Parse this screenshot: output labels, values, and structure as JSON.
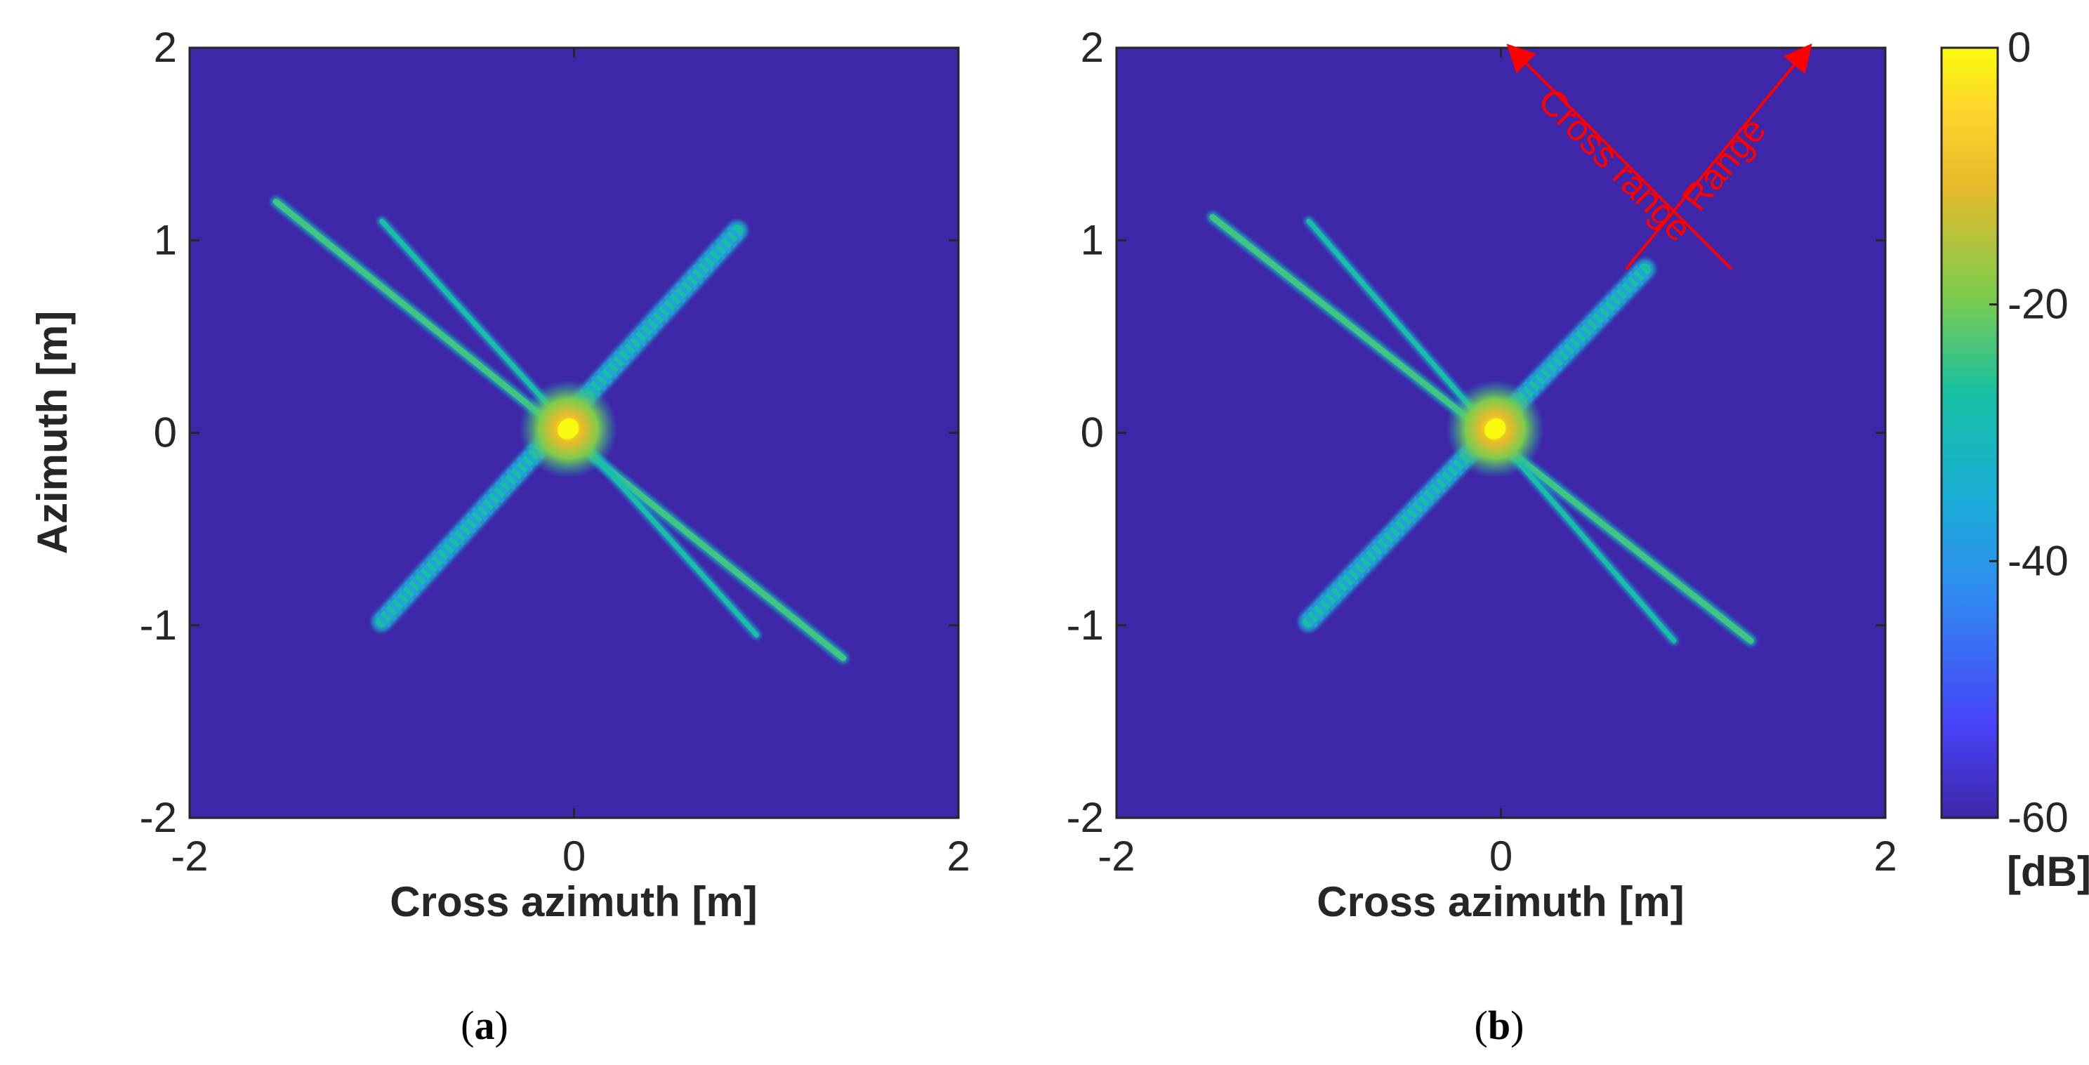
{
  "chart_data": [
    {
      "type": "heatmap",
      "panel_label": "a",
      "xlabel": "Cross azimuth [m]",
      "ylabel": "Azimuth [m]",
      "xlim": [
        -2,
        2
      ],
      "ylim": [
        -2,
        2
      ],
      "xticks": [
        "-2",
        "0",
        "2"
      ],
      "yticks": [
        "2",
        "1",
        "0",
        "-1",
        "-2"
      ],
      "background_db": -60,
      "peak": {
        "x": -0.03,
        "y": 0.02,
        "value_db": 0
      },
      "streaks": [
        {
          "name": "",
          "from": [
            -1.55,
            1.2
          ],
          "to": [
            1.4,
            -1.17
          ],
          "width": 0.045,
          "level": 0.55,
          "stripes": false
        },
        {
          "name": "",
          "from": [
            -1.0,
            1.1
          ],
          "to": [
            0.95,
            -1.05
          ],
          "width": 0.035,
          "level": 0.5,
          "stripes": false
        },
        {
          "name": "",
          "from": [
            -1.0,
            -0.98
          ],
          "to": [
            0.85,
            1.05
          ],
          "width": 0.085,
          "level": 0.5,
          "stripes": true
        }
      ]
    },
    {
      "type": "heatmap",
      "panel_label": "b",
      "xlabel": "Cross azimuth [m]",
      "ylabel": "",
      "xlim": [
        -2,
        2
      ],
      "ylim": [
        -2,
        2
      ],
      "xticks": [
        "-2",
        "0",
        "2"
      ],
      "yticks": [
        "2",
        "1",
        "0",
        "-1",
        "-2"
      ],
      "background_db": -60,
      "peak": {
        "x": -0.03,
        "y": 0.02,
        "value_db": 0
      },
      "streaks": [
        {
          "name": "",
          "from": [
            -1.5,
            1.12
          ],
          "to": [
            1.3,
            -1.08
          ],
          "width": 0.045,
          "level": 0.55,
          "stripes": false
        },
        {
          "name": "",
          "from": [
            -1.0,
            1.1
          ],
          "to": [
            0.9,
            -1.08
          ],
          "width": 0.035,
          "level": 0.5,
          "stripes": false
        },
        {
          "name": "",
          "from": [
            -1.0,
            -0.98
          ],
          "to": [
            0.75,
            0.85
          ],
          "width": 0.085,
          "level": 0.5,
          "stripes": true
        }
      ],
      "annotations": [
        {
          "text": "Cross range",
          "from": [
            1.2,
            0.85
          ],
          "to": [
            0.05,
            2.0
          ]
        },
        {
          "text": "Range",
          "from": [
            0.65,
            0.85
          ],
          "to": [
            1.6,
            2.0
          ]
        }
      ]
    }
  ],
  "colorbar": {
    "label": "[dB]",
    "range": [
      -60,
      0
    ],
    "ticks": [
      "0",
      "-20",
      "-40",
      "-60"
    ],
    "colormap": [
      "#3e26a8",
      "#4743f8",
      "#2f8ef0",
      "#1aaed5",
      "#17c0a3",
      "#7fcc4d",
      "#e7ba2b",
      "#fed52c",
      "#f9fb0e"
    ]
  },
  "captions": {
    "a": "(a)",
    "b": "(b)"
  },
  "colors": {
    "background": "#3e26a8",
    "annotation": "#ff0000"
  }
}
